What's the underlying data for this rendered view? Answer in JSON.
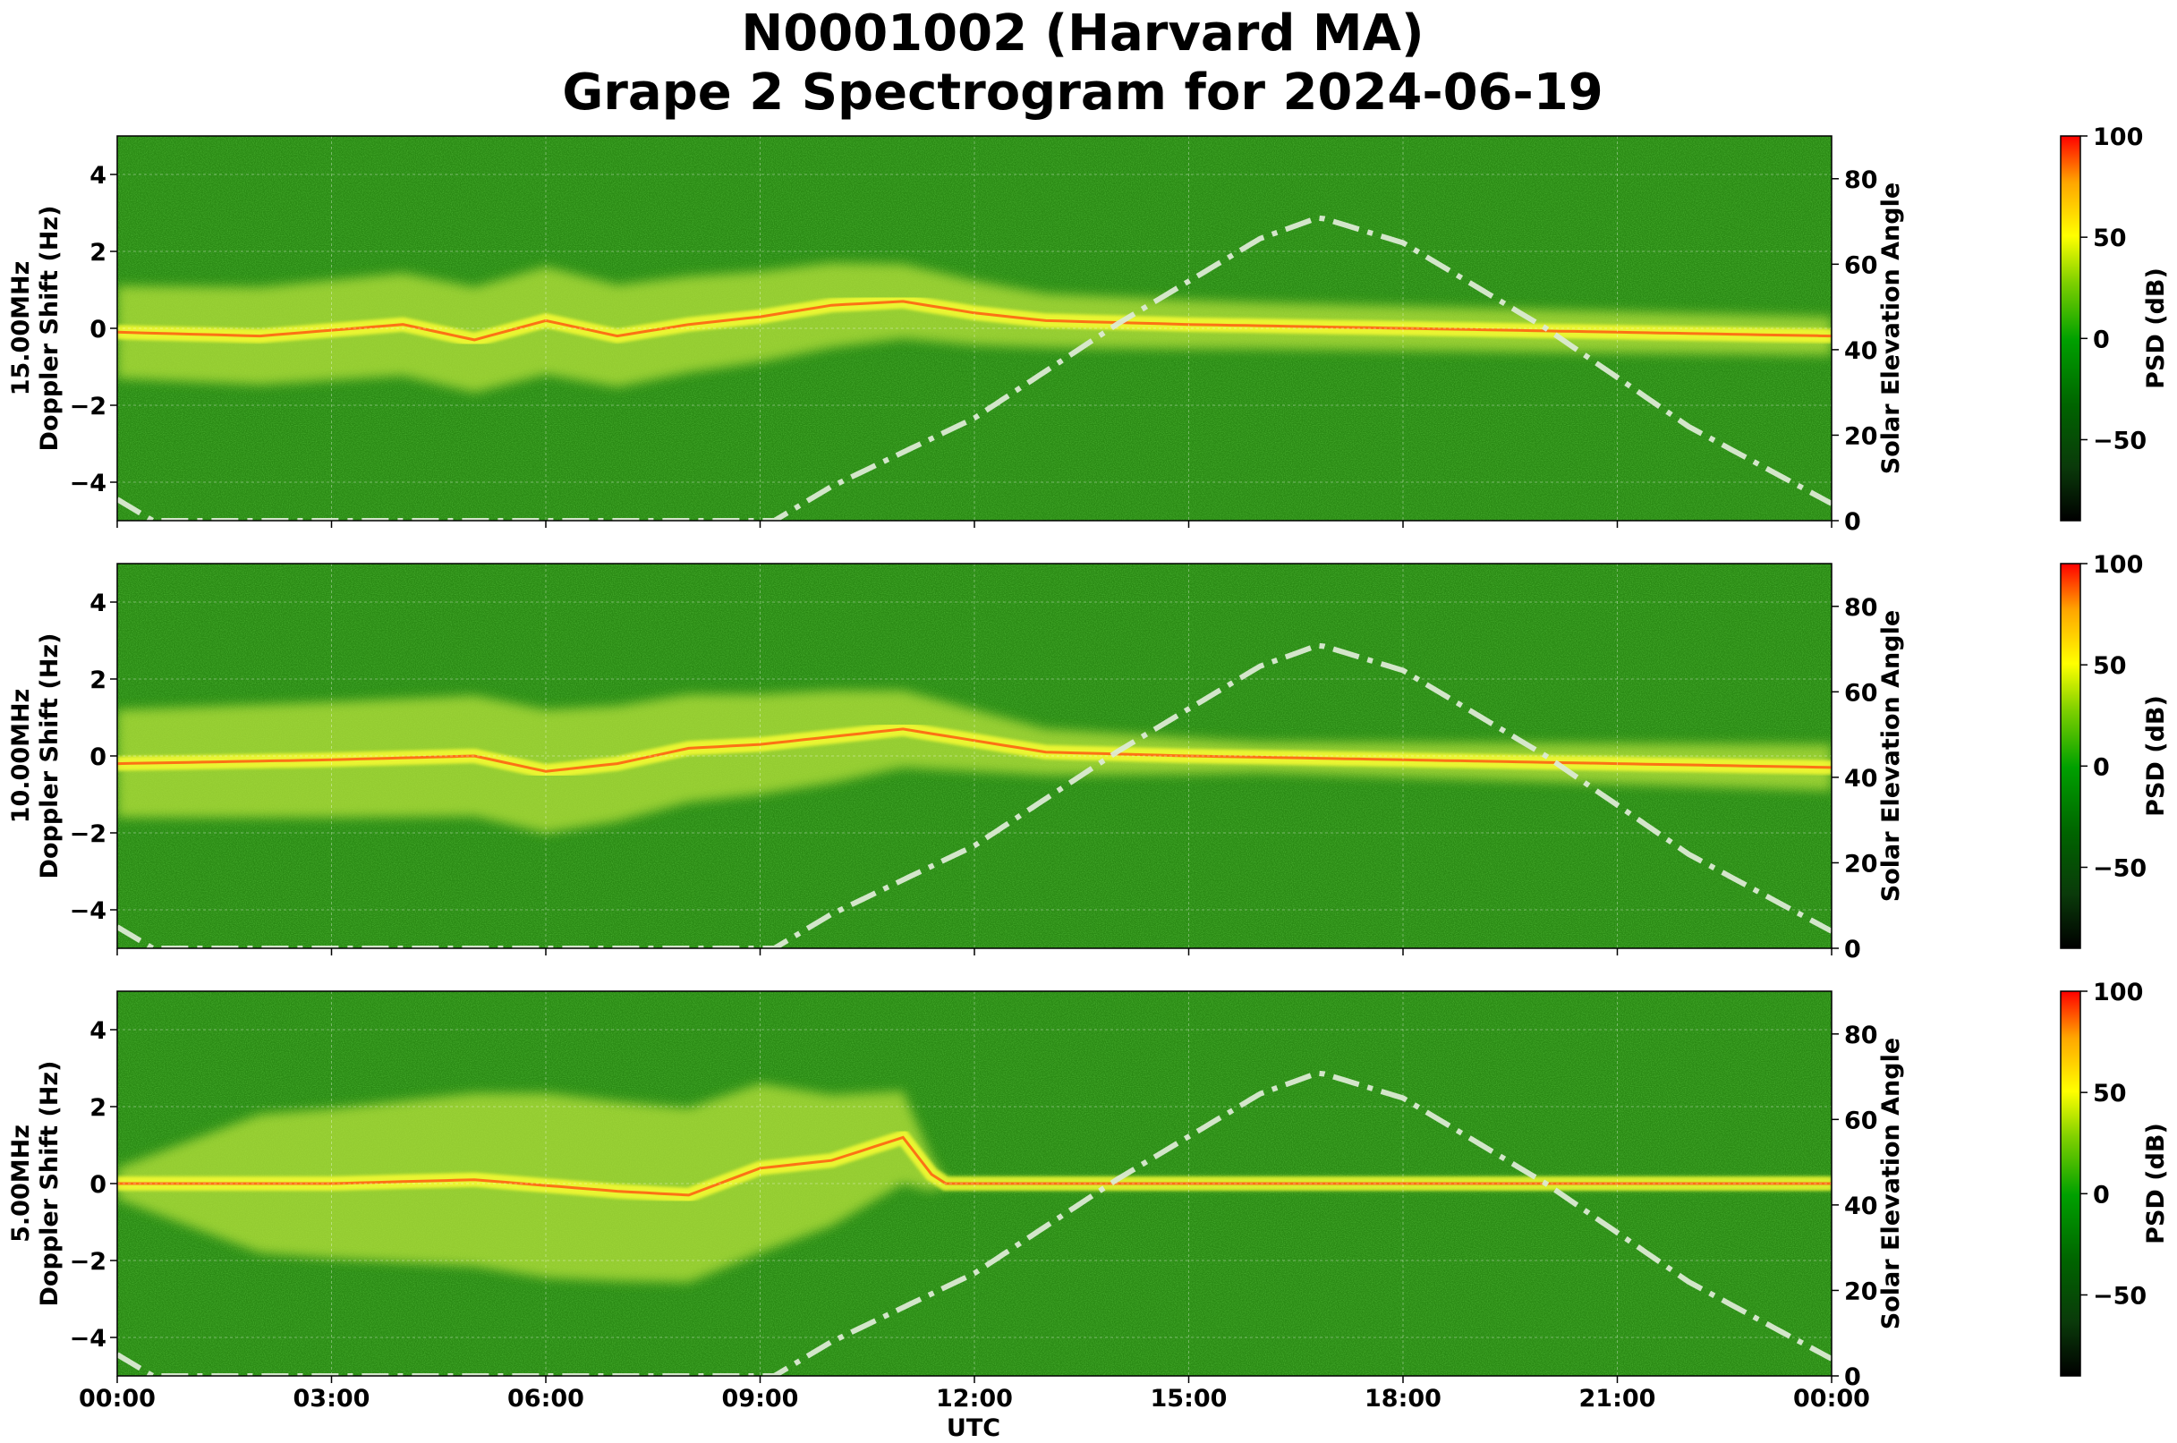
{
  "title": {
    "line1": "N0001002 (Harvard MA)",
    "line2": "Grape 2 Spectrogram for 2024-06-19"
  },
  "chart_data": {
    "type": "heatmap",
    "xlabel": "UTC",
    "x_ticks": [
      "00:00",
      "03:00",
      "06:00",
      "09:00",
      "12:00",
      "15:00",
      "18:00",
      "21:00",
      "00:00"
    ],
    "x_range_hours": [
      0,
      24
    ],
    "ylabel": "Doppler Shift (Hz)",
    "y_range": [
      -5,
      5
    ],
    "y_ticks": [
      4,
      2,
      0,
      -2,
      -4
    ],
    "y2label": "Solar Elevation Angle",
    "y2_range": [
      0,
      90
    ],
    "y2_ticks": [
      80,
      60,
      40,
      20,
      0
    ],
    "colorbar": {
      "label": "PSD (dB)",
      "range": [
        -90,
        100
      ],
      "ticks": [
        100,
        50,
        0,
        -50
      ],
      "colors": [
        "#000000",
        "#006400",
        "#00a000",
        "#ffff00",
        "#ff0000"
      ]
    },
    "grid": true,
    "panels": [
      {
        "frequency_label": "15.00MHz",
        "carrier_trace": [
          [
            0,
            -0.1
          ],
          [
            2,
            -0.2
          ],
          [
            4,
            0.1
          ],
          [
            5,
            -0.3
          ],
          [
            6,
            0.2
          ],
          [
            7,
            -0.2
          ],
          [
            8,
            0.1
          ],
          [
            9,
            0.3
          ],
          [
            10,
            0.6
          ],
          [
            11,
            0.7
          ],
          [
            12,
            0.4
          ],
          [
            13,
            0.2
          ],
          [
            15,
            0.1
          ],
          [
            18,
            0.0
          ],
          [
            21,
            -0.1
          ],
          [
            24,
            -0.2
          ]
        ],
        "spread_width": [
          [
            0,
            1.2
          ],
          [
            6,
            1.4
          ],
          [
            10,
            1.1
          ],
          [
            13,
            0.7
          ],
          [
            16,
            0.6
          ],
          [
            24,
            0.5
          ]
        ]
      },
      {
        "frequency_label": "10.00MHz",
        "carrier_trace": [
          [
            0,
            -0.2
          ],
          [
            3,
            -0.1
          ],
          [
            5,
            0.0
          ],
          [
            6,
            -0.4
          ],
          [
            7,
            -0.2
          ],
          [
            8,
            0.2
          ],
          [
            9,
            0.3
          ],
          [
            10,
            0.5
          ],
          [
            11,
            0.7
          ],
          [
            12,
            0.4
          ],
          [
            13,
            0.1
          ],
          [
            15,
            0.0
          ],
          [
            24,
            -0.3
          ]
        ],
        "spread_width": [
          [
            0,
            1.4
          ],
          [
            6,
            1.6
          ],
          [
            10,
            1.2
          ],
          [
            13,
            0.6
          ],
          [
            16,
            0.4
          ],
          [
            24,
            0.6
          ]
        ]
      },
      {
        "frequency_label": "5.00MHz",
        "carrier_trace": [
          [
            0,
            0.0
          ],
          [
            3,
            0.0
          ],
          [
            5,
            0.1
          ],
          [
            7,
            -0.2
          ],
          [
            8,
            -0.3
          ],
          [
            9,
            0.4
          ],
          [
            10,
            0.6
          ],
          [
            11,
            1.2
          ],
          [
            11.5,
            0.0
          ],
          [
            24,
            0.0
          ]
        ],
        "spread_width": [
          [
            0,
            0.4
          ],
          [
            2,
            1.8
          ],
          [
            6,
            2.4
          ],
          [
            9,
            2.2
          ],
          [
            11,
            1.2
          ],
          [
            11.6,
            0.05
          ],
          [
            24,
            0.05
          ]
        ]
      }
    ],
    "solar_elevation": [
      [
        0,
        5
      ],
      [
        0.5,
        0
      ],
      [
        9.2,
        0
      ],
      [
        10,
        8
      ],
      [
        12,
        24
      ],
      [
        14,
        46
      ],
      [
        16,
        66
      ],
      [
        16.83,
        71
      ],
      [
        18,
        65
      ],
      [
        20,
        45
      ],
      [
        22,
        22
      ],
      [
        24,
        4
      ]
    ]
  }
}
